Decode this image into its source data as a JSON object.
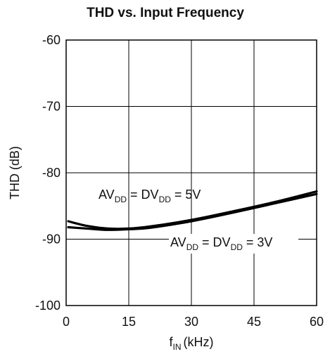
{
  "chart_data": {
    "type": "line",
    "title": "THD vs. Input Frequency",
    "xlabel": {
      "base": "f",
      "sub": "IN",
      "unit": "(kHz)"
    },
    "ylabel": "THD (dB)",
    "xlim": [
      0,
      60
    ],
    "ylim": [
      -100,
      -60
    ],
    "xticks": [
      "0",
      "15",
      "30",
      "45",
      "60"
    ],
    "yticks": [
      "-60",
      "-70",
      "-80",
      "-90",
      "-100"
    ],
    "grid": true,
    "series": [
      {
        "name": "AVDD = DVDD = 5V",
        "color": "#000000",
        "x": [
          0.5,
          5,
          10,
          15,
          20,
          30,
          40,
          50,
          60
        ],
        "y": [
          -87.3,
          -88.0,
          -88.4,
          -88.4,
          -88.1,
          -87.1,
          -85.8,
          -84.4,
          -82.8
        ]
      },
      {
        "name": "AVDD = DVDD = 3V",
        "color": "#000000",
        "x": [
          0.5,
          5,
          10,
          15,
          20,
          30,
          40,
          50,
          60
        ],
        "y": [
          -88.2,
          -88.4,
          -88.6,
          -88.5,
          -88.3,
          -87.3,
          -86.0,
          -84.6,
          -83.2
        ]
      }
    ],
    "annotations": [
      {
        "parts": [
          "AV",
          "DD",
          " = DV",
          "DD",
          " = 5V"
        ],
        "target": "AVDD = DVDD = 5V"
      },
      {
        "parts": [
          "AV",
          "DD",
          " = DV",
          "DD",
          " = 3V"
        ],
        "target": "AVDD = DVDD = 3V"
      }
    ]
  }
}
